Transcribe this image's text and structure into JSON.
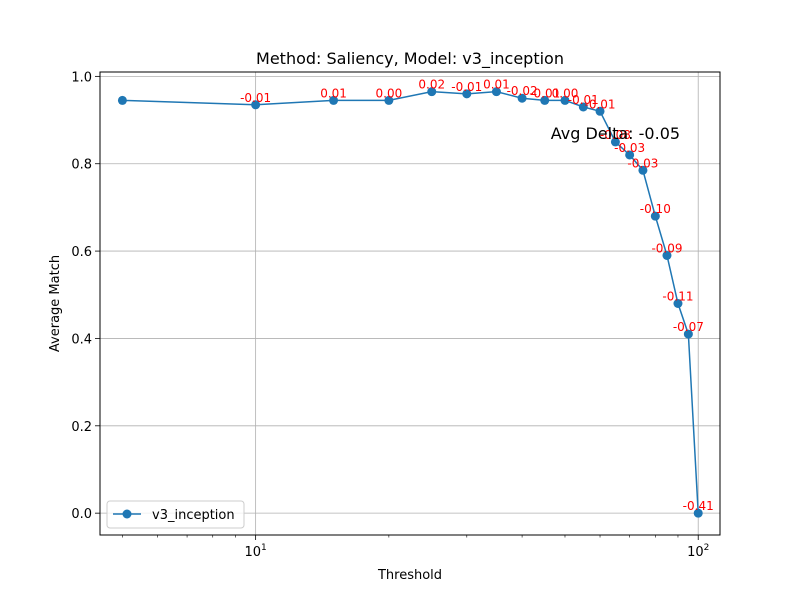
{
  "chart_data": {
    "type": "line",
    "title": "Method: Saliency, Model: v3_inception",
    "xlabel": "Threshold",
    "ylabel": "Average Match",
    "xscale": "log",
    "xlim": [
      4.45,
      112
    ],
    "ylim": [
      -0.05,
      1.01
    ],
    "grid": true,
    "legend_position": "lower-left",
    "x_ticks": [
      {
        "value": 10,
        "base": "10",
        "exp": "1"
      },
      {
        "value": 100,
        "base": "10",
        "exp": "2"
      }
    ],
    "y_ticks": [
      "0.0",
      "0.2",
      "0.4",
      "0.6",
      "0.8",
      "1.0"
    ],
    "series": [
      {
        "name": "v3_inception",
        "color": "#1f77b4",
        "x": [
          5,
          10,
          15,
          20,
          25,
          30,
          35,
          40,
          45,
          50,
          55,
          60,
          65,
          70,
          75,
          80,
          85,
          90,
          95,
          100
        ],
        "y": [
          0.945,
          0.935,
          0.945,
          0.945,
          0.965,
          0.96,
          0.965,
          0.95,
          0.945,
          0.945,
          0.93,
          0.92,
          0.85,
          0.82,
          0.785,
          0.68,
          0.59,
          0.48,
          0.41,
          0.0
        ]
      }
    ],
    "data_labels": [
      {
        "x": 10,
        "y": 0.935,
        "text": "-0.01"
      },
      {
        "x": 15,
        "y": 0.945,
        "text": "0.01"
      },
      {
        "x": 20,
        "y": 0.945,
        "text": "0.00"
      },
      {
        "x": 25,
        "y": 0.965,
        "text": "0.02"
      },
      {
        "x": 30,
        "y": 0.96,
        "text": "-0.01"
      },
      {
        "x": 35,
        "y": 0.965,
        "text": "0.01"
      },
      {
        "x": 40,
        "y": 0.95,
        "text": "-0.02"
      },
      {
        "x": 45,
        "y": 0.945,
        "text": "-0.01"
      },
      {
        "x": 50,
        "y": 0.945,
        "text": "0.00"
      },
      {
        "x": 55,
        "y": 0.93,
        "text": "-0.01"
      },
      {
        "x": 60,
        "y": 0.92,
        "text": "-0.01"
      },
      {
        "x": 65,
        "y": 0.85,
        "text": "-0.08"
      },
      {
        "x": 70,
        "y": 0.82,
        "text": "-0.03"
      },
      {
        "x": 75,
        "y": 0.785,
        "text": "-0.03"
      },
      {
        "x": 80,
        "y": 0.68,
        "text": "-0.10"
      },
      {
        "x": 85,
        "y": 0.59,
        "text": "-0.09"
      },
      {
        "x": 90,
        "y": 0.48,
        "text": "-0.11"
      },
      {
        "x": 95,
        "y": 0.41,
        "text": "-0.07"
      },
      {
        "x": 100,
        "y": 0.0,
        "text": "-0.41"
      }
    ],
    "data_label_color": "#ff0000",
    "annotation": {
      "text": "Avg Delta: -0.05",
      "x": 65,
      "y": 0.87
    }
  }
}
